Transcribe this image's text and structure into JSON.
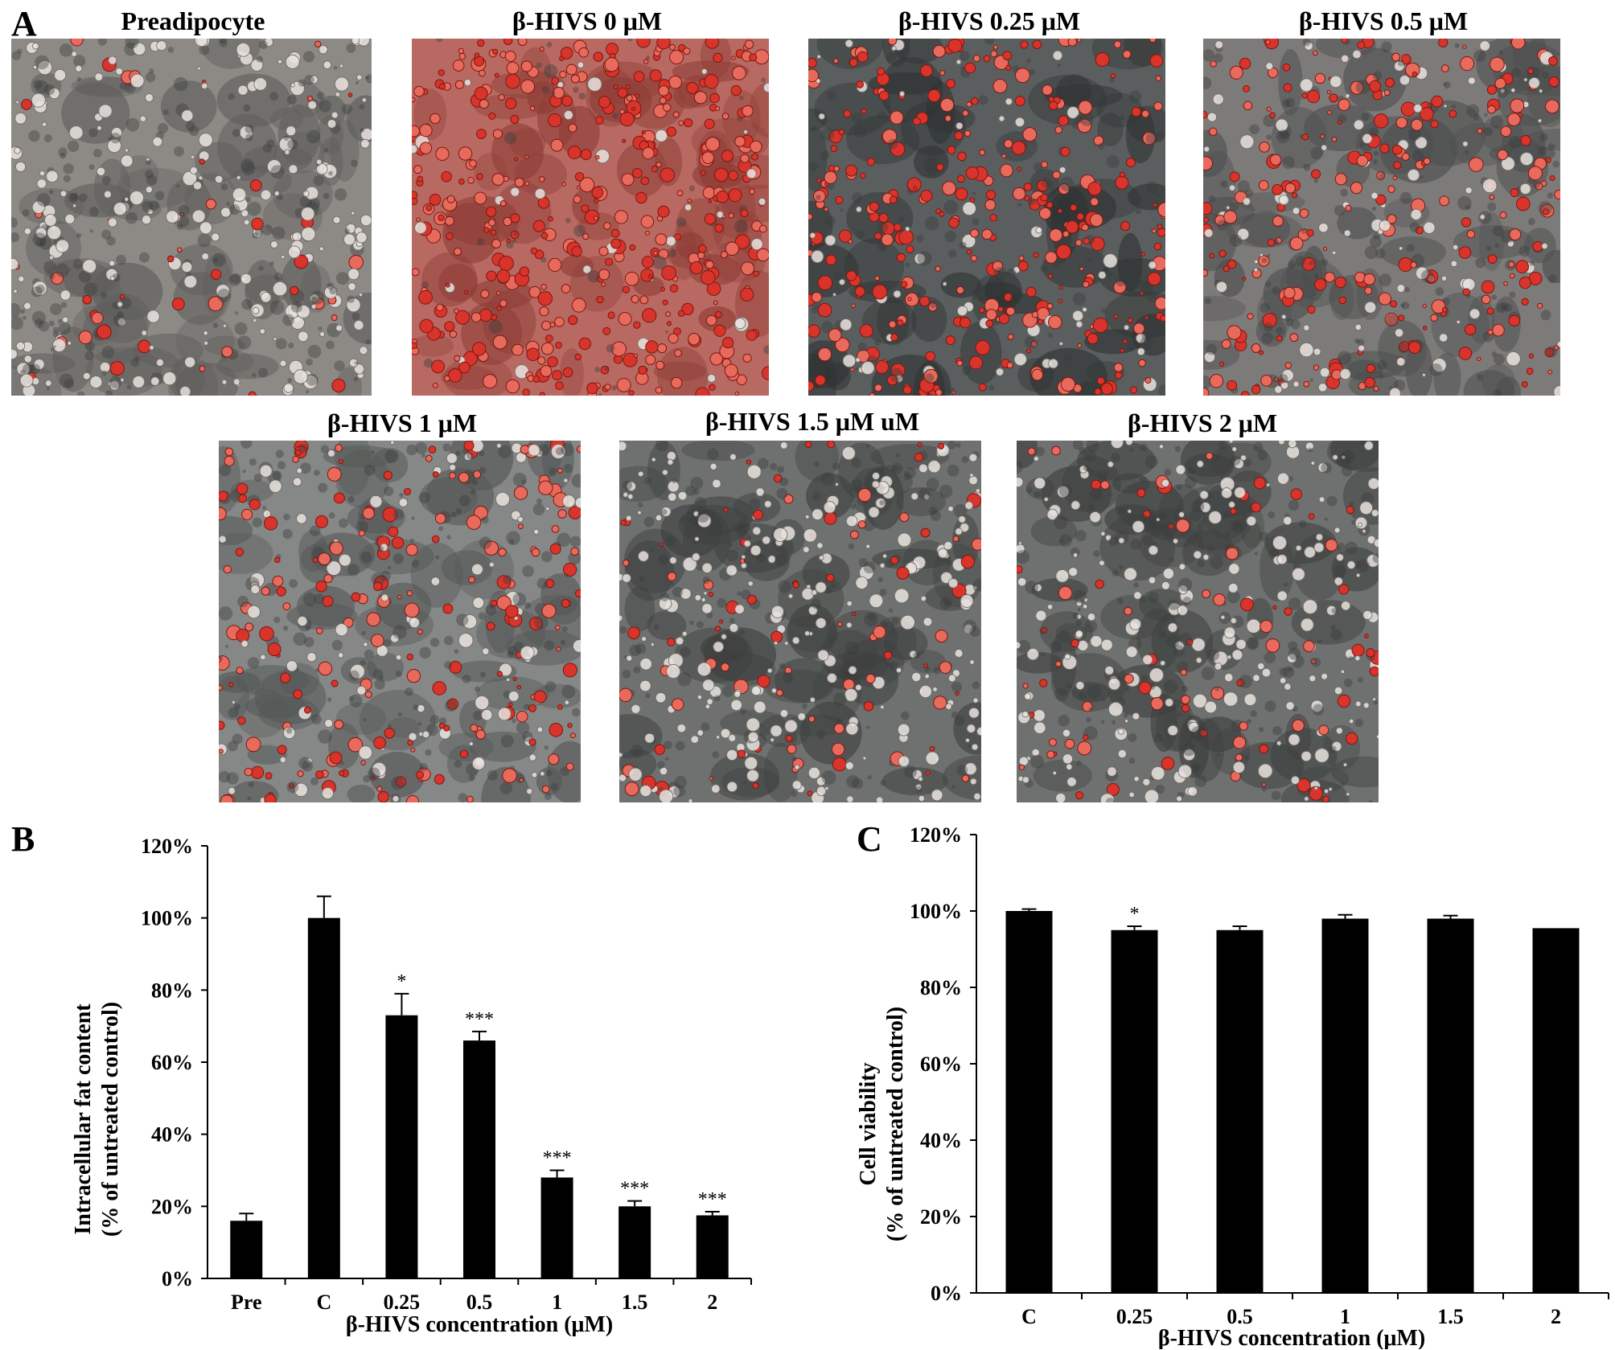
{
  "panelA": {
    "letter": "A",
    "images": [
      {
        "title": "Preadipocyte",
        "stain": "low"
      },
      {
        "title": "β-HIVS  0 μM",
        "stain": "dense"
      },
      {
        "title": "β-HIVS  0.25 μM",
        "stain": "high"
      },
      {
        "title": "β-HIVS  0.5 μM",
        "stain": "medium"
      },
      {
        "title": "β-HIVS  1 μM",
        "stain": "medium-low"
      },
      {
        "title": "β-HIVS  1.5 μM uM",
        "stain": "faint"
      },
      {
        "title": "β-HIVS  2 μM",
        "stain": "faint"
      }
    ]
  },
  "chart_data": [
    {
      "panel": "B",
      "type": "bar",
      "categories": [
        "Pre",
        "C",
        "0.25",
        "0.5",
        "1",
        "1.5",
        "2"
      ],
      "values": [
        16,
        100,
        73,
        66,
        28,
        20,
        17.5
      ],
      "errors": [
        2,
        6,
        6,
        2.5,
        2,
        1.5,
        1
      ],
      "significance": [
        "",
        "",
        "*",
        "***",
        "***",
        "***",
        "***"
      ],
      "ylim": [
        0,
        120
      ],
      "yticks": [
        "0%",
        "20%",
        "40%",
        "60%",
        "80%",
        "100%",
        "120%"
      ],
      "ylabel_line1": "Intracellular fat content",
      "ylabel_line2": "(% of untreated control)",
      "xlabel": "β-HIVS  concentration  (μM)",
      "bar_color": "#000000"
    },
    {
      "panel": "C",
      "type": "bar",
      "categories": [
        "C",
        "0.25",
        "0.5",
        "1",
        "1.5",
        "2"
      ],
      "values": [
        100,
        95,
        95,
        98,
        98,
        95.5
      ],
      "errors": [
        0.5,
        1,
        1,
        1,
        0.8,
        0
      ],
      "significance": [
        "",
        "*",
        "",
        "",
        "",
        ""
      ],
      "ylim": [
        0,
        120
      ],
      "yticks": [
        "0%",
        "20%",
        "40%",
        "60%",
        "80%",
        "100%",
        "120%"
      ],
      "ylabel_line1": "Cell viability",
      "ylabel_line2": "(% of untreated control)",
      "xlabel": "β-HIVS concentration  (μM)",
      "bar_color": "#000000"
    }
  ]
}
